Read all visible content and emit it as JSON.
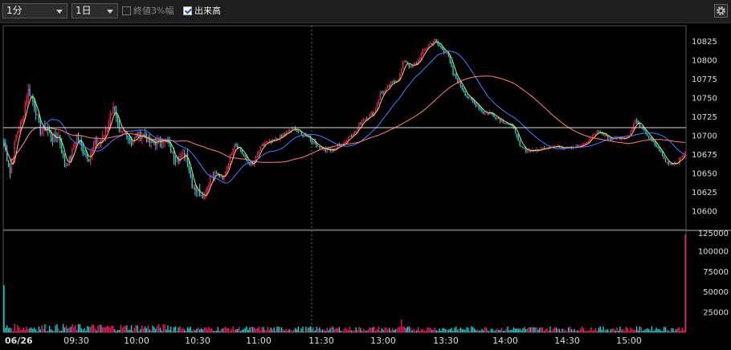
{
  "toolbar": {
    "interval_select": "1分",
    "period_select": "1日",
    "option_close3": {
      "label": "終値3%幅",
      "checked": false
    },
    "option_volume": {
      "label": "出来高",
      "checked": true
    },
    "settings_icon": "gear-icon"
  },
  "colors": {
    "background": "#000000",
    "up_candle": "#ff1a66",
    "down_candle": "#20d6d6",
    "ma_short": "#e8e060",
    "ma_mid": "#4a7cff",
    "ma_long": "#ff8080",
    "reference_line": "#dddddd"
  },
  "chart_data": {
    "type": "candlestick",
    "date_label": "06/26",
    "x_ticks": [
      "09:30",
      "10:00",
      "10:30",
      "11:00",
      "11:30",
      "13:00",
      "13:30",
      "14:00",
      "14:30",
      "15:00"
    ],
    "price_axis": {
      "ylim": [
        10575,
        10845
      ],
      "ticks": [
        10600,
        10625,
        10650,
        10675,
        10700,
        10725,
        10750,
        10775,
        10800,
        10825
      ]
    },
    "volume_axis": {
      "ylim": [
        0,
        125000
      ],
      "ticks": [
        25000,
        50000,
        75000,
        100000,
        125000
      ],
      "top_label": "125000"
    },
    "reference_price": 10710,
    "price_path": [
      [
        0,
        10690
      ],
      [
        4,
        10650
      ],
      [
        8,
        10700
      ],
      [
        12,
        10720
      ],
      [
        16,
        10760
      ],
      [
        20,
        10740
      ],
      [
        24,
        10705
      ],
      [
        28,
        10710
      ],
      [
        32,
        10695
      ],
      [
        36,
        10700
      ],
      [
        40,
        10660
      ],
      [
        44,
        10670
      ],
      [
        48,
        10700
      ],
      [
        52,
        10680
      ],
      [
        56,
        10670
      ],
      [
        60,
        10690
      ],
      [
        64,
        10690
      ],
      [
        68,
        10710
      ],
      [
        72,
        10740
      ],
      [
        76,
        10700
      ],
      [
        80,
        10705
      ],
      [
        84,
        10690
      ],
      [
        88,
        10700
      ],
      [
        92,
        10700
      ],
      [
        96,
        10690
      ],
      [
        100,
        10690
      ],
      [
        104,
        10695
      ],
      [
        108,
        10690
      ],
      [
        112,
        10670
      ],
      [
        116,
        10670
      ],
      [
        120,
        10675
      ],
      [
        124,
        10635
      ],
      [
        128,
        10625
      ],
      [
        132,
        10620
      ],
      [
        136,
        10645
      ],
      [
        140,
        10650
      ],
      [
        144,
        10640
      ],
      [
        148,
        10665
      ],
      [
        152,
        10690
      ],
      [
        156,
        10680
      ],
      [
        160,
        10665
      ],
      [
        164,
        10660
      ],
      [
        168,
        10680
      ],
      [
        172,
        10690
      ],
      [
        176,
        10690
      ],
      [
        180,
        10695
      ],
      [
        184,
        10700
      ],
      [
        188,
        10705
      ],
      [
        192,
        10710
      ],
      [
        196,
        10700
      ],
      [
        200,
        10700
      ],
      [
        204,
        10690
      ],
      [
        208,
        10685
      ],
      [
        212,
        10680
      ],
      [
        216,
        10680
      ],
      [
        220,
        10685
      ],
      [
        224,
        10690
      ],
      [
        228,
        10700
      ],
      [
        232,
        10705
      ],
      [
        236,
        10720
      ],
      [
        240,
        10725
      ],
      [
        244,
        10730
      ],
      [
        248,
        10755
      ],
      [
        252,
        10760
      ],
      [
        256,
        10770
      ],
      [
        260,
        10775
      ],
      [
        264,
        10800
      ],
      [
        268,
        10790
      ],
      [
        272,
        10795
      ],
      [
        276,
        10810
      ],
      [
        280,
        10820
      ],
      [
        284,
        10825
      ],
      [
        288,
        10815
      ],
      [
        292,
        10810
      ],
      [
        296,
        10780
      ],
      [
        300,
        10770
      ],
      [
        304,
        10755
      ],
      [
        308,
        10745
      ],
      [
        312,
        10740
      ],
      [
        316,
        10730
      ],
      [
        320,
        10730
      ],
      [
        324,
        10725
      ],
      [
        328,
        10720
      ],
      [
        332,
        10715
      ],
      [
        336,
        10710
      ],
      [
        340,
        10685
      ],
      [
        344,
        10680
      ],
      [
        348,
        10680
      ],
      [
        352,
        10680
      ],
      [
        356,
        10683
      ],
      [
        360,
        10685
      ],
      [
        364,
        10685
      ],
      [
        368,
        10684
      ],
      [
        372,
        10685
      ],
      [
        376,
        10684
      ],
      [
        380,
        10685
      ],
      [
        384,
        10690
      ],
      [
        388,
        10700
      ],
      [
        392,
        10705
      ],
      [
        396,
        10700
      ],
      [
        400,
        10695
      ],
      [
        404,
        10698
      ],
      [
        408,
        10695
      ],
      [
        412,
        10700
      ],
      [
        416,
        10720
      ],
      [
        420,
        10710
      ],
      [
        424,
        10700
      ],
      [
        428,
        10690
      ],
      [
        432,
        10680
      ],
      [
        436,
        10665
      ],
      [
        440,
        10662
      ],
      [
        444,
        10665
      ],
      [
        448,
        10675
      ]
    ]
  }
}
